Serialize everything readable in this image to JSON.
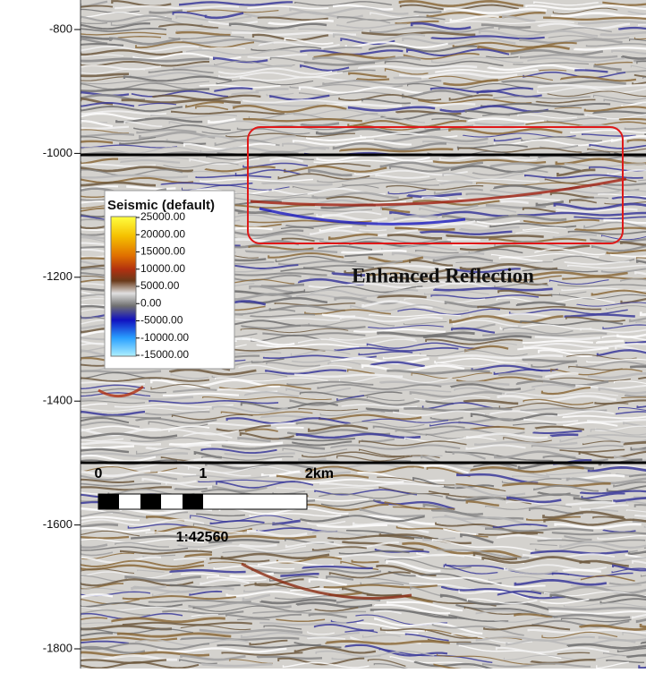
{
  "depth_axis": {
    "ticks": [
      -800,
      -1000,
      -1200,
      -1400,
      -1600,
      -1800
    ]
  },
  "legend": {
    "title": "Seismic (default)",
    "labels": [
      "25000.00",
      "20000.00",
      "15000.00",
      "10000.00",
      "5000.00",
      "0.00",
      "-5000.00",
      "-10000.00",
      "-15000.00"
    ]
  },
  "annotation": "Enhanced Reflection",
  "scale_bar": {
    "labels": [
      "0",
      "1",
      "2km"
    ],
    "ratio": "1:42560"
  }
}
